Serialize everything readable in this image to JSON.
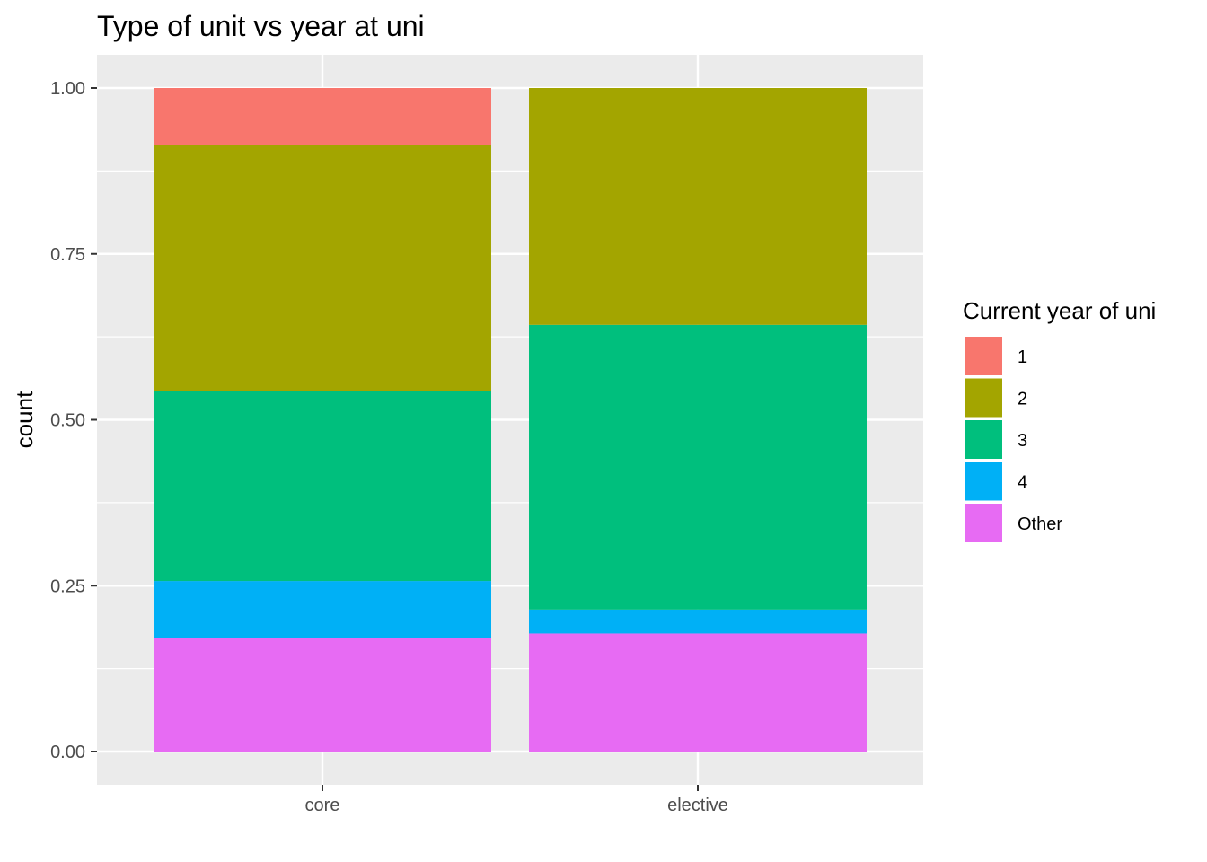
{
  "chart_data": {
    "type": "bar",
    "stacked": true,
    "position": "fill",
    "title": "Type of unit vs year at uni",
    "xlabel": "",
    "ylabel": "count",
    "categories": [
      "core",
      "elective"
    ],
    "ylim": [
      0,
      1
    ],
    "yticks": [
      0,
      0.25,
      0.5,
      0.75,
      1
    ],
    "ytick_labels": [
      "0.00",
      "0.25",
      "0.50",
      "0.75",
      "1.00"
    ],
    "grid": true,
    "legend": {
      "title": "Current year of uni",
      "placement": "right",
      "entries": [
        "1",
        "2",
        "3",
        "4",
        "Other"
      ]
    },
    "series": [
      {
        "name": "1",
        "color": "#F8766D",
        "values": [
          0.086,
          0
        ]
      },
      {
        "name": "2",
        "color": "#A3A500",
        "values": [
          0.371,
          0.357
        ]
      },
      {
        "name": "3",
        "color": "#00BF7D",
        "values": [
          0.286,
          0.429
        ]
      },
      {
        "name": "4",
        "color": "#00B0F6",
        "values": [
          0.086,
          0.036
        ]
      },
      {
        "name": "Other",
        "color": "#E76BF3",
        "values": [
          0.171,
          0.178
        ]
      }
    ],
    "stack_order_bottom_to_top": [
      "Other",
      "4",
      "3",
      "2",
      "1"
    ],
    "panel_background": "#EBEBEB",
    "gridline_color": "#FFFFFF"
  }
}
